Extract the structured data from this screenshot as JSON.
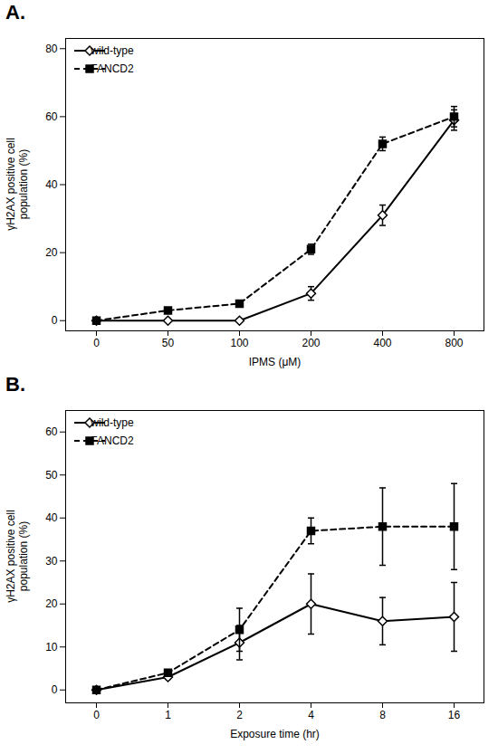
{
  "chart_data": [
    {
      "type": "line",
      "title": "A.",
      "xlabel": "IPMS (μM)",
      "ylabel": "γH2AX positive cell\npopulation (%)",
      "categories": [
        "0",
        "50",
        "100",
        "200",
        "400",
        "800"
      ],
      "ylim": [
        -3,
        83
      ],
      "yticks": [
        0,
        20,
        40,
        60,
        80
      ],
      "legend": "upper-left",
      "series": [
        {
          "name": "wild-type",
          "color": "black",
          "marker": "diamond",
          "line_style": "solid",
          "values": [
            0,
            0,
            0,
            8,
            31,
            59
          ],
          "yerr": [
            0.4,
            0.4,
            0.5,
            2.0,
            3.0,
            3.0
          ]
        },
        {
          "name": "FANCD2",
          "color": "black",
          "marker": "square",
          "line_style": "dashed",
          "values": [
            0,
            3,
            5,
            21,
            52,
            60
          ],
          "yerr": [
            0.4,
            0.5,
            0.8,
            1.5,
            2.0,
            3.0
          ]
        }
      ]
    },
    {
      "type": "line",
      "title": "B.",
      "xlabel": "Exposure time (hr)",
      "ylabel": "γH2AX positive cell\npopulation (%)",
      "categories": [
        "0",
        "1",
        "2",
        "4",
        "8",
        "16"
      ],
      "ylim": [
        -3,
        65
      ],
      "yticks": [
        0,
        10,
        20,
        30,
        40,
        50,
        60
      ],
      "legend": "upper-left",
      "series": [
        {
          "name": "wild-type",
          "color": "black",
          "marker": "diamond",
          "line_style": "solid",
          "values": [
            0,
            3,
            11,
            20,
            16,
            17
          ],
          "yerr": [
            0.4,
            0.5,
            4.0,
            7.0,
            5.5,
            8.0
          ]
        },
        {
          "name": "FANCD2",
          "color": "black",
          "marker": "square",
          "line_style": "dashed",
          "values": [
            0,
            4,
            14,
            37,
            38,
            38
          ],
          "yerr": [
            0.4,
            0.5,
            5.0,
            3.0,
            9.0,
            10.0
          ]
        }
      ]
    }
  ]
}
